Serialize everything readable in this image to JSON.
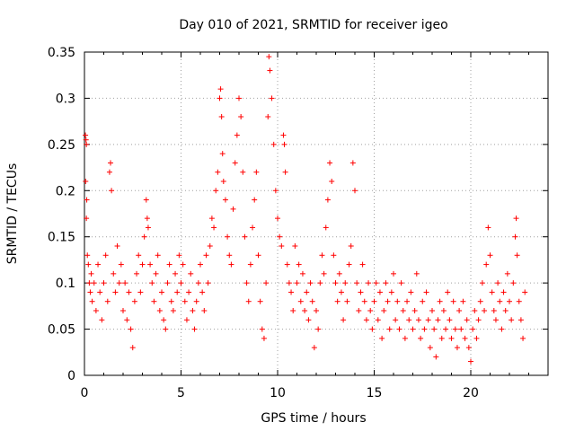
{
  "chart_data": {
    "type": "scatter",
    "title": "Day 010 of 2021, SRMTID for receiver igeo",
    "xlabel": "GPS time / hours",
    "ylabel": "SRMTID / TECUs",
    "xlim": [
      0,
      24
    ],
    "ylim": [
      0,
      0.35
    ],
    "x_ticks": [
      0,
      5,
      10,
      15,
      20
    ],
    "y_ticks": [
      0,
      0.05,
      0.1,
      0.15,
      0.2,
      0.25,
      0.3,
      0.35
    ],
    "x_tick_labels": [
      "0",
      "5",
      "10",
      "15",
      "20"
    ],
    "y_tick_labels": [
      "0",
      "0.05",
      "0.1",
      "0.15",
      "0.2",
      "0.25",
      "0.3",
      "0.35"
    ],
    "grid": true,
    "marker": "+",
    "color": "#ff0000",
    "series": [
      {
        "name": "SRMTID",
        "points": [
          [
            0.05,
            0.26
          ],
          [
            0.08,
            0.255
          ],
          [
            0.1,
            0.25
          ],
          [
            0.06,
            0.21
          ],
          [
            0.12,
            0.19
          ],
          [
            0.1,
            0.17
          ],
          [
            0.15,
            0.13
          ],
          [
            0.2,
            0.12
          ],
          [
            0.25,
            0.1
          ],
          [
            0.3,
            0.09
          ],
          [
            0.35,
            0.11
          ],
          [
            0.4,
            0.08
          ],
          [
            0.5,
            0.1
          ],
          [
            0.6,
            0.07
          ],
          [
            0.7,
            0.12
          ],
          [
            0.8,
            0.09
          ],
          [
            0.9,
            0.06
          ],
          [
            1.0,
            0.1
          ],
          [
            1.1,
            0.13
          ],
          [
            1.2,
            0.08
          ],
          [
            1.3,
            0.22
          ],
          [
            1.35,
            0.23
          ],
          [
            1.4,
            0.2
          ],
          [
            1.5,
            0.11
          ],
          [
            1.6,
            0.09
          ],
          [
            1.7,
            0.14
          ],
          [
            1.8,
            0.1
          ],
          [
            1.9,
            0.12
          ],
          [
            2.0,
            0.07
          ],
          [
            2.1,
            0.1
          ],
          [
            2.2,
            0.06
          ],
          [
            2.3,
            0.09
          ],
          [
            2.4,
            0.05
          ],
          [
            2.5,
            0.03
          ],
          [
            2.6,
            0.08
          ],
          [
            2.7,
            0.11
          ],
          [
            2.8,
            0.13
          ],
          [
            2.9,
            0.09
          ],
          [
            3.0,
            0.12
          ],
          [
            3.1,
            0.15
          ],
          [
            3.2,
            0.19
          ],
          [
            3.25,
            0.17
          ],
          [
            3.3,
            0.16
          ],
          [
            3.4,
            0.12
          ],
          [
            3.5,
            0.1
          ],
          [
            3.6,
            0.08
          ],
          [
            3.7,
            0.11
          ],
          [
            3.8,
            0.13
          ],
          [
            3.9,
            0.07
          ],
          [
            4.0,
            0.09
          ],
          [
            4.1,
            0.06
          ],
          [
            4.2,
            0.05
          ],
          [
            4.3,
            0.1
          ],
          [
            4.4,
            0.12
          ],
          [
            4.5,
            0.08
          ],
          [
            4.6,
            0.07
          ],
          [
            4.7,
            0.11
          ],
          [
            4.8,
            0.09
          ],
          [
            4.9,
            0.13
          ],
          [
            5.0,
            0.1
          ],
          [
            5.1,
            0.12
          ],
          [
            5.2,
            0.08
          ],
          [
            5.3,
            0.06
          ],
          [
            5.4,
            0.09
          ],
          [
            5.5,
            0.11
          ],
          [
            5.6,
            0.07
          ],
          [
            5.7,
            0.05
          ],
          [
            5.8,
            0.08
          ],
          [
            5.9,
            0.1
          ],
          [
            6.0,
            0.12
          ],
          [
            6.1,
            0.09
          ],
          [
            6.2,
            0.07
          ],
          [
            6.3,
            0.13
          ],
          [
            6.4,
            0.1
          ],
          [
            6.5,
            0.14
          ],
          [
            6.6,
            0.17
          ],
          [
            6.7,
            0.16
          ],
          [
            6.8,
            0.2
          ],
          [
            6.9,
            0.22
          ],
          [
            7.0,
            0.3
          ],
          [
            7.05,
            0.31
          ],
          [
            7.1,
            0.28
          ],
          [
            7.15,
            0.24
          ],
          [
            7.2,
            0.21
          ],
          [
            7.3,
            0.19
          ],
          [
            7.4,
            0.15
          ],
          [
            7.5,
            0.13
          ],
          [
            7.6,
            0.12
          ],
          [
            7.7,
            0.18
          ],
          [
            7.8,
            0.23
          ],
          [
            7.9,
            0.26
          ],
          [
            8.0,
            0.3
          ],
          [
            8.1,
            0.28
          ],
          [
            8.2,
            0.22
          ],
          [
            8.3,
            0.15
          ],
          [
            8.4,
            0.1
          ],
          [
            8.5,
            0.08
          ],
          [
            8.6,
            0.12
          ],
          [
            8.7,
            0.16
          ],
          [
            8.8,
            0.19
          ],
          [
            8.9,
            0.22
          ],
          [
            9.0,
            0.13
          ],
          [
            9.1,
            0.08
          ],
          [
            9.2,
            0.05
          ],
          [
            9.3,
            0.04
          ],
          [
            9.4,
            0.1
          ],
          [
            9.5,
            0.28
          ],
          [
            9.55,
            0.345
          ],
          [
            9.6,
            0.33
          ],
          [
            9.7,
            0.3
          ],
          [
            9.8,
            0.25
          ],
          [
            9.9,
            0.2
          ],
          [
            10.0,
            0.17
          ],
          [
            10.1,
            0.15
          ],
          [
            10.2,
            0.14
          ],
          [
            10.3,
            0.26
          ],
          [
            10.35,
            0.25
          ],
          [
            10.4,
            0.22
          ],
          [
            10.5,
            0.12
          ],
          [
            10.6,
            0.1
          ],
          [
            10.7,
            0.09
          ],
          [
            10.8,
            0.07
          ],
          [
            10.9,
            0.14
          ],
          [
            11.0,
            0.1
          ],
          [
            11.1,
            0.12
          ],
          [
            11.2,
            0.08
          ],
          [
            11.3,
            0.11
          ],
          [
            11.4,
            0.07
          ],
          [
            11.5,
            0.09
          ],
          [
            11.6,
            0.06
          ],
          [
            11.7,
            0.1
          ],
          [
            11.8,
            0.08
          ],
          [
            11.9,
            0.03
          ],
          [
            12.0,
            0.07
          ],
          [
            12.1,
            0.05
          ],
          [
            12.2,
            0.1
          ],
          [
            12.3,
            0.13
          ],
          [
            12.4,
            0.11
          ],
          [
            12.5,
            0.16
          ],
          [
            12.6,
            0.19
          ],
          [
            12.7,
            0.23
          ],
          [
            12.8,
            0.21
          ],
          [
            12.9,
            0.13
          ],
          [
            13.0,
            0.1
          ],
          [
            13.1,
            0.08
          ],
          [
            13.2,
            0.11
          ],
          [
            13.3,
            0.09
          ],
          [
            13.4,
            0.06
          ],
          [
            13.5,
            0.1
          ],
          [
            13.6,
            0.08
          ],
          [
            13.7,
            0.12
          ],
          [
            13.8,
            0.14
          ],
          [
            13.9,
            0.23
          ],
          [
            14.0,
            0.2
          ],
          [
            14.1,
            0.1
          ],
          [
            14.2,
            0.07
          ],
          [
            14.3,
            0.09
          ],
          [
            14.4,
            0.12
          ],
          [
            14.5,
            0.08
          ],
          [
            14.6,
            0.06
          ],
          [
            14.7,
            0.1
          ],
          [
            14.8,
            0.07
          ],
          [
            14.9,
            0.05
          ],
          [
            15.0,
            0.08
          ],
          [
            15.1,
            0.1
          ],
          [
            15.2,
            0.06
          ],
          [
            15.3,
            0.09
          ],
          [
            15.4,
            0.04
          ],
          [
            15.5,
            0.07
          ],
          [
            15.6,
            0.1
          ],
          [
            15.7,
            0.08
          ],
          [
            15.8,
            0.05
          ],
          [
            15.9,
            0.09
          ],
          [
            16.0,
            0.11
          ],
          [
            16.1,
            0.06
          ],
          [
            16.2,
            0.08
          ],
          [
            16.3,
            0.05
          ],
          [
            16.4,
            0.1
          ],
          [
            16.5,
            0.07
          ],
          [
            16.6,
            0.04
          ],
          [
            16.7,
            0.08
          ],
          [
            16.8,
            0.06
          ],
          [
            16.9,
            0.09
          ],
          [
            17.0,
            0.05
          ],
          [
            17.1,
            0.07
          ],
          [
            17.2,
            0.11
          ],
          [
            17.3,
            0.06
          ],
          [
            17.4,
            0.04
          ],
          [
            17.5,
            0.08
          ],
          [
            17.6,
            0.05
          ],
          [
            17.7,
            0.09
          ],
          [
            17.8,
            0.06
          ],
          [
            17.9,
            0.03
          ],
          [
            18.0,
            0.07
          ],
          [
            18.1,
            0.05
          ],
          [
            18.2,
            0.02
          ],
          [
            18.3,
            0.06
          ],
          [
            18.4,
            0.08
          ],
          [
            18.5,
            0.04
          ],
          [
            18.6,
            0.07
          ],
          [
            18.7,
            0.05
          ],
          [
            18.8,
            0.09
          ],
          [
            18.9,
            0.06
          ],
          [
            19.0,
            0.04
          ],
          [
            19.1,
            0.08
          ],
          [
            19.2,
            0.05
          ],
          [
            19.3,
            0.03
          ],
          [
            19.4,
            0.07
          ],
          [
            19.5,
            0.05
          ],
          [
            19.6,
            0.08
          ],
          [
            19.7,
            0.04
          ],
          [
            19.8,
            0.06
          ],
          [
            19.9,
            0.03
          ],
          [
            20.0,
            0.015
          ],
          [
            20.1,
            0.05
          ],
          [
            20.2,
            0.07
          ],
          [
            20.3,
            0.04
          ],
          [
            20.4,
            0.06
          ],
          [
            20.5,
            0.08
          ],
          [
            20.6,
            0.1
          ],
          [
            20.7,
            0.07
          ],
          [
            20.8,
            0.12
          ],
          [
            20.9,
            0.16
          ],
          [
            21.0,
            0.13
          ],
          [
            21.1,
            0.09
          ],
          [
            21.2,
            0.07
          ],
          [
            21.3,
            0.06
          ],
          [
            21.4,
            0.1
          ],
          [
            21.5,
            0.08
          ],
          [
            21.6,
            0.05
          ],
          [
            21.7,
            0.09
          ],
          [
            21.8,
            0.07
          ],
          [
            21.9,
            0.11
          ],
          [
            22.0,
            0.08
          ],
          [
            22.1,
            0.06
          ],
          [
            22.2,
            0.1
          ],
          [
            22.3,
            0.15
          ],
          [
            22.35,
            0.17
          ],
          [
            22.4,
            0.13
          ],
          [
            22.5,
            0.08
          ],
          [
            22.6,
            0.06
          ],
          [
            22.7,
            0.04
          ],
          [
            22.8,
            0.09
          ]
        ]
      }
    ]
  }
}
